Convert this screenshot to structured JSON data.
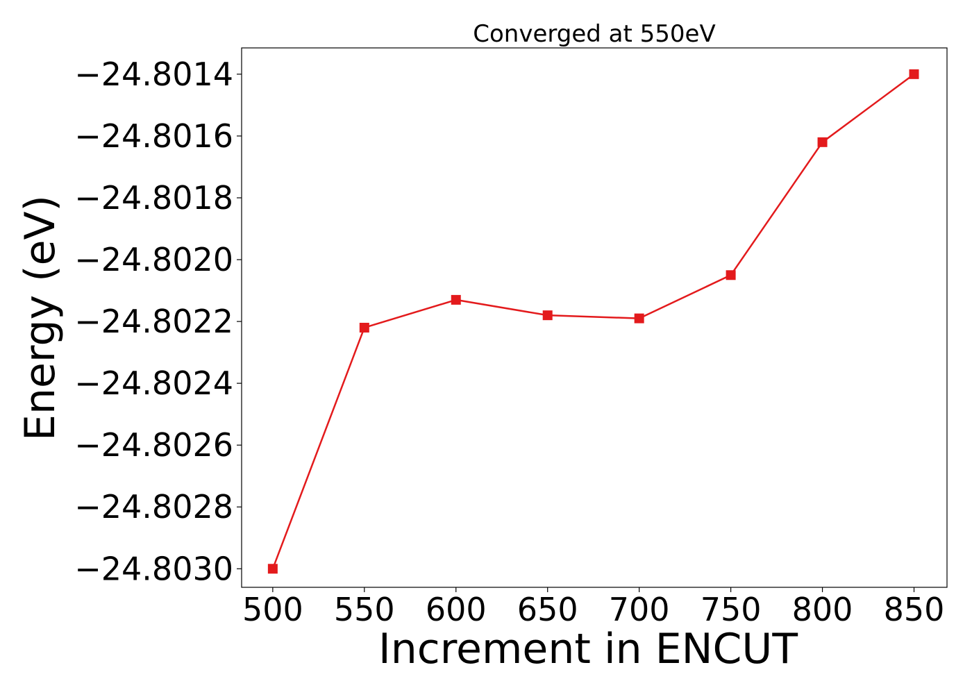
{
  "chart_data": {
    "type": "line",
    "title": "Converged at 550eV",
    "xlabel": "Increment in ENCUT",
    "ylabel": "Energy (eV)",
    "x": [
      500,
      550,
      600,
      650,
      700,
      750,
      800,
      850
    ],
    "series": [
      {
        "values": [
          -24.803,
          -24.80222,
          -24.80213,
          -24.80218,
          -24.80219,
          -24.80205,
          -24.80162,
          -24.8014
        ],
        "color": "#e31a1c",
        "marker": "square"
      }
    ],
    "xticks": [
      500,
      550,
      600,
      650,
      700,
      750,
      800,
      850
    ],
    "xtick_labels": [
      "500",
      "550",
      "600",
      "650",
      "700",
      "750",
      "800",
      "850"
    ],
    "yticks": [
      -24.803,
      -24.8028,
      -24.8026,
      -24.8024,
      -24.8022,
      -24.802,
      -24.8018,
      -24.8016,
      -24.8014
    ],
    "ytick_labels": [
      "−24.8030",
      "−24.8028",
      "−24.8026",
      "−24.8024",
      "−24.8022",
      "−24.8020",
      "−24.8018",
      "−24.8016",
      "−24.8014"
    ],
    "xlim": [
      483,
      868
    ],
    "ylim": [
      -24.80306,
      -24.801315
    ],
    "grid": false,
    "legend": false
  }
}
